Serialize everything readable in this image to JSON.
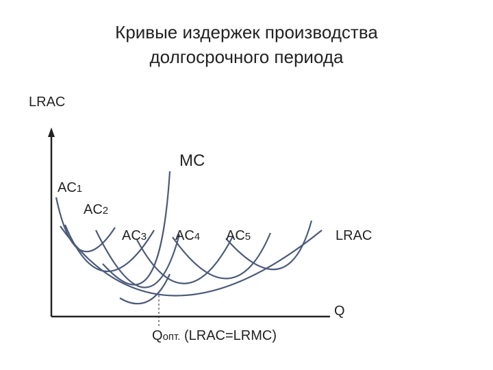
{
  "title": {
    "lines": [
      "Кривые издержек производства",
      "долгосрочного периода"
    ]
  },
  "axes": {
    "y_label": "LRAC",
    "x_label": "Q"
  },
  "curve_labels": {
    "mc": "MC",
    "ac1": {
      "base": "AC",
      "sub": "1"
    },
    "ac2": {
      "base": "AC",
      "sub": "2"
    },
    "ac3": {
      "base": "AC",
      "sub": "3"
    },
    "ac4": {
      "base": "AC",
      "sub": "4"
    },
    "ac5": {
      "base": "AC",
      "sub": "5"
    },
    "lrac": "LRAC"
  },
  "optimum": {
    "base": "Q",
    "sub": "опт.",
    "note": " (LRAC=LRMC)"
  }
}
